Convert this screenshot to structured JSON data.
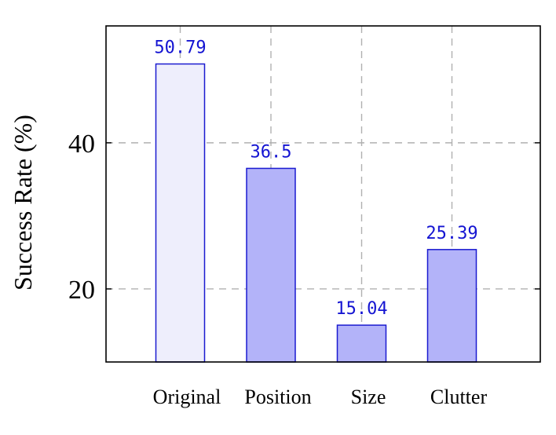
{
  "chart_data": {
    "type": "bar",
    "categories": [
      "Original",
      "Position",
      "Size",
      "Clutter"
    ],
    "values": [
      50.79,
      36.5,
      15.04,
      25.39
    ],
    "data_labels": [
      "50.79",
      "36.5",
      "15.04",
      "25.39"
    ],
    "title": "",
    "xlabel": "",
    "ylabel": "Success Rate (%)",
    "ylim": [
      10,
      56
    ],
    "yticks": [
      20,
      40
    ],
    "ytick_labels": [
      "20",
      "40"
    ],
    "grid": true,
    "colors": {
      "bar_fill": "#b3b3f9",
      "first_bar_fill": "#eeeefc",
      "bar_stroke": "#1a1ad0",
      "data_label": "#1414d2",
      "grid": "#b0b0b0",
      "axes": "#000000"
    }
  }
}
